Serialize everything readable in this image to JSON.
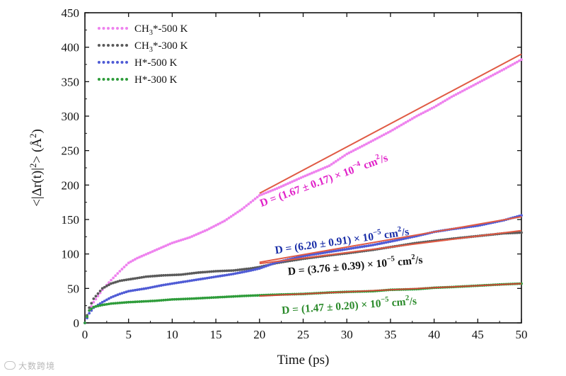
{
  "chart_data": {
    "type": "scatter",
    "xlabel": "Time (ps)",
    "ylabel_parts": [
      "<|Δr(t)|",
      "2",
      "> (Å",
      "2",
      ")"
    ],
    "xlim": [
      0,
      50
    ],
    "ylim": [
      0,
      450
    ],
    "xticks": [
      0,
      5,
      10,
      15,
      20,
      25,
      30,
      35,
      40,
      45,
      50
    ],
    "yticks": [
      0,
      50,
      100,
      150,
      200,
      250,
      300,
      350,
      400,
      450
    ],
    "legend_position": "top-left",
    "series": [
      {
        "name": "CH3*-500 K",
        "legend_label": [
          "CH",
          "3",
          "*-500 K"
        ],
        "color": "#ee82ee",
        "points": [
          [
            0,
            0
          ],
          [
            0.5,
            18
          ],
          [
            1,
            30
          ],
          [
            2,
            48
          ],
          [
            3,
            62
          ],
          [
            4,
            75
          ],
          [
            5,
            87
          ],
          [
            6,
            94
          ],
          [
            8,
            105
          ],
          [
            10,
            116
          ],
          [
            12,
            124
          ],
          [
            14,
            135
          ],
          [
            16,
            148
          ],
          [
            18,
            165
          ],
          [
            20,
            185
          ],
          [
            22,
            195
          ],
          [
            25,
            212
          ],
          [
            28,
            228
          ],
          [
            30,
            245
          ],
          [
            32,
            258
          ],
          [
            35,
            278
          ],
          [
            38,
            300
          ],
          [
            40,
            313
          ],
          [
            42,
            328
          ],
          [
            45,
            348
          ],
          [
            48,
            368
          ],
          [
            50,
            382
          ]
        ]
      },
      {
        "name": "CH3*-300 K",
        "legend_label": [
          "CH",
          "3",
          "*-300 K"
        ],
        "color": "#5a5a5a",
        "points": [
          [
            0,
            0
          ],
          [
            0.5,
            22
          ],
          [
            1,
            35
          ],
          [
            2,
            50
          ],
          [
            3,
            57
          ],
          [
            4,
            61
          ],
          [
            5,
            63
          ],
          [
            7,
            67
          ],
          [
            9,
            69
          ],
          [
            11,
            70
          ],
          [
            13,
            73
          ],
          [
            15,
            75
          ],
          [
            17,
            76
          ],
          [
            19,
            79
          ],
          [
            20,
            81
          ],
          [
            22,
            87
          ],
          [
            25,
            93
          ],
          [
            28,
            98
          ],
          [
            30,
            101
          ],
          [
            33,
            106
          ],
          [
            35,
            110
          ],
          [
            38,
            116
          ],
          [
            40,
            119
          ],
          [
            42,
            122
          ],
          [
            45,
            126
          ],
          [
            48,
            130
          ],
          [
            50,
            131
          ]
        ]
      },
      {
        "name": "H*-500 K",
        "legend_label": [
          "H*-500 K"
        ],
        "color": "#4f5bd5",
        "points": [
          [
            0,
            0
          ],
          [
            0.5,
            14
          ],
          [
            1,
            22
          ],
          [
            2,
            30
          ],
          [
            3,
            37
          ],
          [
            4,
            42
          ],
          [
            5,
            46
          ],
          [
            7,
            50
          ],
          [
            9,
            55
          ],
          [
            11,
            59
          ],
          [
            13,
            63
          ],
          [
            15,
            67
          ],
          [
            17,
            71
          ],
          [
            19,
            76
          ],
          [
            20,
            79
          ],
          [
            22,
            88
          ],
          [
            25,
            97
          ],
          [
            28,
            103
          ],
          [
            30,
            107
          ],
          [
            33,
            113
          ],
          [
            35,
            118
          ],
          [
            38,
            126
          ],
          [
            40,
            132
          ],
          [
            42,
            136
          ],
          [
            45,
            141
          ],
          [
            48,
            149
          ],
          [
            50,
            156
          ]
        ]
      },
      {
        "name": "H*-300 K",
        "legend_label": [
          "H*-300 K"
        ],
        "color": "#2e9c3a",
        "points": [
          [
            0,
            0
          ],
          [
            0.5,
            18
          ],
          [
            1,
            23
          ],
          [
            2,
            26
          ],
          [
            3,
            28
          ],
          [
            5,
            30
          ],
          [
            8,
            32
          ],
          [
            10,
            34
          ],
          [
            12,
            35
          ],
          [
            15,
            37
          ],
          [
            18,
            39
          ],
          [
            20,
            40
          ],
          [
            22,
            41
          ],
          [
            25,
            42
          ],
          [
            28,
            44
          ],
          [
            30,
            45
          ],
          [
            33,
            46
          ],
          [
            35,
            48
          ],
          [
            38,
            49
          ],
          [
            40,
            51
          ],
          [
            42,
            52
          ],
          [
            45,
            54
          ],
          [
            48,
            56
          ],
          [
            50,
            57
          ]
        ]
      }
    ],
    "fits": [
      {
        "series": "CH3*-500 K",
        "x": [
          20,
          50
        ],
        "y": [
          188,
          390
        ],
        "color": "#e05a44"
      },
      {
        "series": "H*-500 K",
        "x": [
          20,
          50
        ],
        "y": [
          88,
          154
        ],
        "color": "#e05a44"
      },
      {
        "series": "CH3*-300 K",
        "x": [
          20,
          50
        ],
        "y": [
          86,
          134
        ],
        "color": "#e05a44"
      },
      {
        "series": "H*-300 K",
        "x": [
          20,
          50
        ],
        "y": [
          39,
          57
        ],
        "color": "#c94a36"
      }
    ],
    "annotations": [
      {
        "series": "CH3*-500 K",
        "parts": [
          "D = (1.67 ± 0.17) × 10",
          "−4",
          " cm",
          "2",
          "/s"
        ],
        "color": "#e020c8",
        "at": [
          27.5,
          202
        ],
        "rotate": -20
      },
      {
        "series": "H*-500 K",
        "parts": [
          "D = (6.20 ± 0.91) × 10",
          "−5",
          " cm",
          "2",
          "/s"
        ],
        "color": "#1a2ea8",
        "at": [
          29.5,
          114
        ],
        "rotate": -8
      },
      {
        "series": "CH3*-300 K",
        "parts": [
          "D = (3.76 ± 0.39) × 10",
          "−5",
          " cm",
          "2",
          "/s"
        ],
        "color": "#111111",
        "at": [
          31,
          78
        ],
        "rotate": -5
      },
      {
        "series": "H*-300 K",
        "parts": [
          "D = (1.47 ± 0.20) × 10",
          "−5",
          " cm",
          "2",
          "/s"
        ],
        "color": "#2a8a2a",
        "at": [
          30.3,
          20
        ],
        "rotate": -4
      }
    ]
  },
  "watermark": {
    "text": "大数跨境"
  }
}
